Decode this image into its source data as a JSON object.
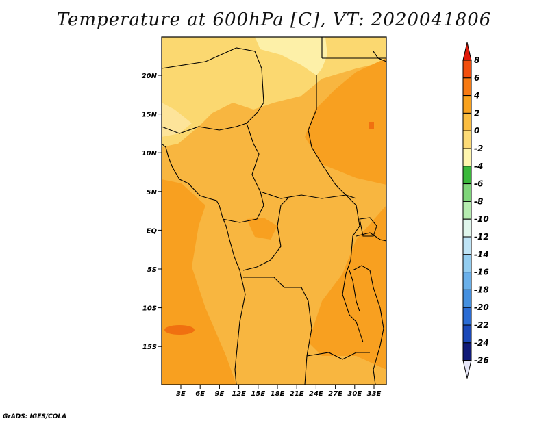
{
  "title": "Temperature at 600hPa [C], VT: 2020041806",
  "credit": "GrADS: IGES/COLA",
  "map": {
    "lat_labels": [
      "20N",
      "15N",
      "10N",
      "5N",
      "EQ",
      "5S",
      "10S",
      "15S"
    ],
    "lon_labels": [
      "3E",
      "6E",
      "9E",
      "12E",
      "15E",
      "18E",
      "21E",
      "24E",
      "27E",
      "30E",
      "33E"
    ],
    "colors": {
      "background_field": "#f8b640",
      "warm_field": "#f8a020",
      "hot_spot": "#f07010",
      "cool_field": "#fbd870",
      "cold_field": "#fdf0a8",
      "coast_line": "#000000"
    }
  },
  "colorbar": {
    "labels": [
      "8",
      "6",
      "4",
      "2",
      "0",
      "-2",
      "-4",
      "-6",
      "-8",
      "-10",
      "-12",
      "-14",
      "-16",
      "-18",
      "-20",
      "-22",
      "-24",
      "-26"
    ],
    "colors": [
      "#e01a0a",
      "#f24e0c",
      "#f77a12",
      "#f9a21e",
      "#fbbd40",
      "#fddb76",
      "#fff6ae",
      "#3ab83a",
      "#7fd67a",
      "#b6ecb0",
      "#e0f6ec",
      "#bfe4f6",
      "#93cdf0",
      "#6ab0ea",
      "#4490e0",
      "#2a6cd4",
      "#1a48b8",
      "#101a78",
      "#e6e6f8"
    ]
  }
}
